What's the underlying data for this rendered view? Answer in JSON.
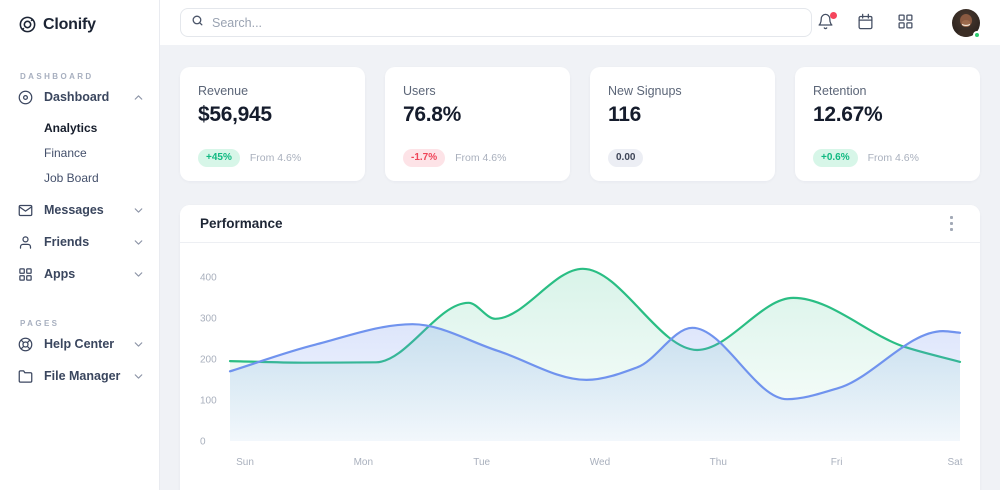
{
  "sidebar": {
    "logo_text": "Clonify",
    "sections": [
      {
        "label": "DASHBOARD",
        "items": [
          {
            "label": "Dashboard",
            "icon": "dashboard-icon",
            "state": "expanded",
            "children": [
              {
                "label": "Analytics",
                "active": true
              },
              {
                "label": "Finance",
                "active": false
              },
              {
                "label": "Job Board",
                "active": false
              }
            ]
          },
          {
            "label": "Messages",
            "icon": "mail-icon",
            "state": "collapsed"
          },
          {
            "label": "Friends",
            "icon": "user-icon",
            "state": "collapsed"
          },
          {
            "label": "Apps",
            "icon": "apps-icon",
            "state": "collapsed"
          }
        ]
      },
      {
        "label": "PAGES",
        "items": [
          {
            "label": "Help Center",
            "icon": "lifebuoy-icon",
            "state": "collapsed"
          },
          {
            "label": "File Manager",
            "icon": "folder-icon",
            "state": "collapsed"
          }
        ]
      }
    ]
  },
  "topbar": {
    "search": {
      "placeholder": "Search...",
      "icon": "search-icon"
    },
    "actions": [
      {
        "icon": "bell-icon",
        "has_notification_dot": true
      },
      {
        "icon": "calendar-icon",
        "has_notification_dot": false
      },
      {
        "icon": "apps-grid-icon",
        "has_notification_dot": false
      }
    ],
    "avatar": {
      "status": "online",
      "status_color": "#2ecc71"
    }
  },
  "stats": [
    {
      "title": "Revenue",
      "value": "$56,945",
      "badge": "+45%",
      "badge_type": "positive",
      "note": "From 4.6%"
    },
    {
      "title": "Users",
      "value": "76.8%",
      "badge": "-1.7%",
      "badge_type": "negative",
      "note": "From 4.6%"
    },
    {
      "title": "New Signups",
      "value": "116",
      "badge": "0.00",
      "badge_type": "neutral",
      "note": ""
    },
    {
      "title": "Retention",
      "value": "12.67%",
      "badge": "+0.6%",
      "badge_type": "positive",
      "note": "From 4.6%"
    }
  ],
  "performance_card": {
    "title": "Performance",
    "menu_icon": "kebab-menu-icon"
  },
  "chart_data": {
    "type": "area",
    "title": "Performance",
    "categories": [
      "Sun",
      "Mon",
      "Tue",
      "Wed",
      "Thu",
      "Fri",
      "Sat"
    ],
    "x_unit": "day_index",
    "yticks": [
      0,
      100,
      200,
      300,
      400
    ],
    "ylim": [
      0,
      440
    ],
    "grid": false,
    "legend": "none",
    "series": [
      {
        "name": "green-series",
        "color": "#2abe84",
        "area_opacity": [
          0.18,
          0.02
        ],
        "points": [
          [
            0,
            195
          ],
          [
            0.6,
            191
          ],
          [
            1.2,
            192
          ],
          [
            1.96,
            337
          ],
          [
            2.18,
            298
          ],
          [
            2.9,
            420
          ],
          [
            3.84,
            222
          ],
          [
            4.63,
            349
          ],
          [
            5.55,
            229
          ],
          [
            6,
            193
          ]
        ]
      },
      {
        "name": "blue-series",
        "color": "#7093ee",
        "area_opacity": [
          0.32,
          0.06
        ],
        "points": [
          [
            0,
            170
          ],
          [
            0.7,
            235
          ],
          [
            1.5,
            285
          ],
          [
            2.2,
            220
          ],
          [
            2.93,
            149
          ],
          [
            3.35,
            180
          ],
          [
            3.8,
            276
          ],
          [
            4.58,
            102
          ],
          [
            5.0,
            129
          ],
          [
            5.86,
            268
          ],
          [
            6,
            264
          ]
        ]
      }
    ]
  },
  "colors": {
    "main_bg": "#f0f2f6",
    "card_bg": "#ffffff",
    "positive_badge_bg": "#d7f6e8",
    "positive_badge_text": "#10b981",
    "negative_badge_bg": "#fde3e7",
    "negative_badge_text": "#ef4458",
    "neutral_badge_bg": "#eceef4",
    "neutral_badge_text": "#3d4456",
    "green_line": "#2abe84",
    "blue_line": "#7093ee",
    "notification_dot": "#f5455c",
    "online_dot": "#2ecc71"
  }
}
